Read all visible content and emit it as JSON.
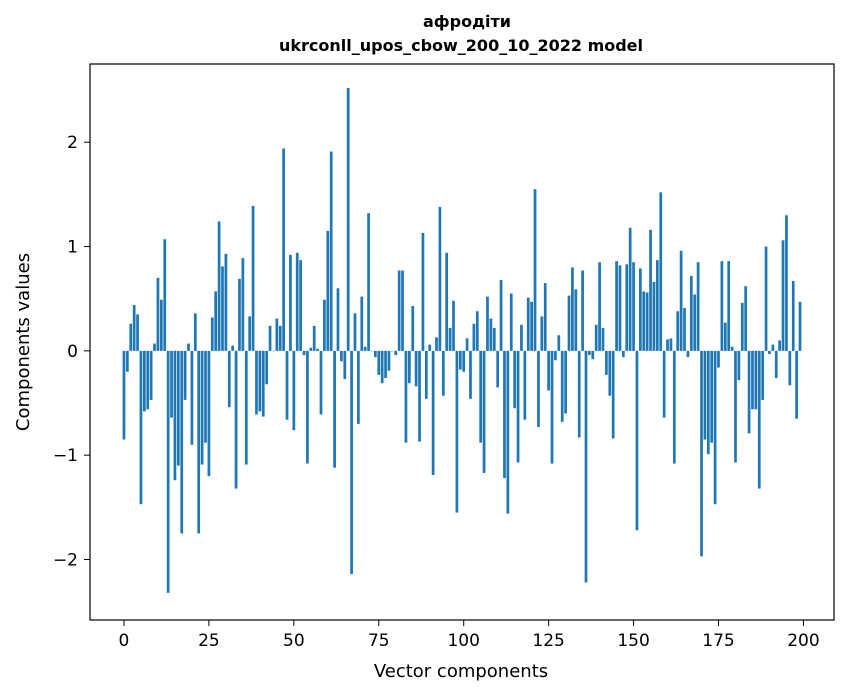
{
  "chart_data": {
    "type": "bar",
    "title": "афродіти",
    "subtitle": "ukrconll_upos_cbow_200_10_2022 model",
    "xlabel": "Vector components",
    "ylabel": "Components values",
    "xlim": [
      -10,
      209
    ],
    "ylim": [
      -2.58,
      2.75
    ],
    "xticks": [
      0,
      25,
      50,
      75,
      100,
      125,
      150,
      175,
      200
    ],
    "yticks": [
      -2,
      -1,
      0,
      1,
      2
    ],
    "ytick_labels": [
      "−2",
      "−1",
      "0",
      "1",
      "2"
    ],
    "bar_color": "#1f77b4",
    "grid": false,
    "values": [
      -0.85,
      -0.2,
      0.26,
      0.44,
      0.35,
      -1.47,
      -0.58,
      -0.56,
      -0.47,
      0.07,
      0.7,
      0.49,
      1.07,
      -2.32,
      -0.64,
      -1.24,
      -1.1,
      -1.75,
      -0.47,
      0.07,
      -0.9,
      0.36,
      -1.75,
      -1.09,
      -0.88,
      -1.2,
      0.32,
      0.57,
      1.24,
      0.81,
      0.93,
      -0.54,
      0.05,
      -1.32,
      0.69,
      0.89,
      -1.09,
      0.33,
      1.39,
      -0.61,
      -0.58,
      -0.63,
      -0.32,
      0.24,
      0.0,
      0.31,
      0.24,
      1.94,
      -0.66,
      0.92,
      -0.76,
      0.94,
      0.87,
      -0.04,
      -1.08,
      0.03,
      0.24,
      0.02,
      -0.61,
      0.49,
      1.15,
      1.91,
      -1.12,
      0.6,
      -0.1,
      -0.27,
      2.52,
      -2.14,
      0.36,
      -0.7,
      0.52,
      0.04,
      1.32,
      0.0,
      -0.06,
      -0.23,
      -0.31,
      -0.26,
      -0.19,
      0.0,
      -0.04,
      0.77,
      0.77,
      -0.88,
      -0.31,
      0.43,
      -0.34,
      -0.87,
      1.13,
      -0.46,
      0.06,
      -1.19,
      0.13,
      1.38,
      -0.43,
      0.94,
      0.22,
      0.48,
      -1.55,
      -0.18,
      -0.2,
      0.12,
      -0.46,
      0.26,
      0.38,
      -0.88,
      -1.17,
      0.52,
      0.31,
      0.22,
      -0.35,
      0.68,
      -1.22,
      -1.56,
      0.55,
      -0.55,
      -1.07,
      0.25,
      -0.66,
      0.51,
      0.47,
      1.55,
      -0.73,
      0.33,
      0.65,
      -0.38,
      -1.08,
      -0.09,
      0.15,
      -0.68,
      -0.6,
      0.53,
      0.8,
      0.59,
      -0.83,
      0.77,
      -2.22,
      -0.04,
      -0.08,
      0.25,
      0.85,
      0.22,
      -0.23,
      -0.43,
      -0.84,
      0.86,
      0.82,
      -0.06,
      0.83,
      1.18,
      0.85,
      -1.72,
      0.79,
      0.57,
      0.56,
      1.16,
      0.66,
      0.87,
      1.52,
      -0.64,
      0.11,
      0.12,
      -1.08,
      0.38,
      0.96,
      0.41,
      -0.06,
      0.72,
      0.54,
      0.85,
      -1.97,
      -0.85,
      -0.99,
      -0.88,
      -1.47,
      -0.16,
      0.86,
      0.27,
      0.86,
      0.04,
      -1.07,
      -0.28,
      0.46,
      0.62,
      -0.79,
      -0.56,
      -0.56,
      -1.32,
      -0.47,
      1.0,
      -0.03,
      0.06,
      -0.26,
      0.1,
      1.06,
      1.3,
      -0.33,
      0.67,
      -0.65,
      0.47
    ]
  }
}
